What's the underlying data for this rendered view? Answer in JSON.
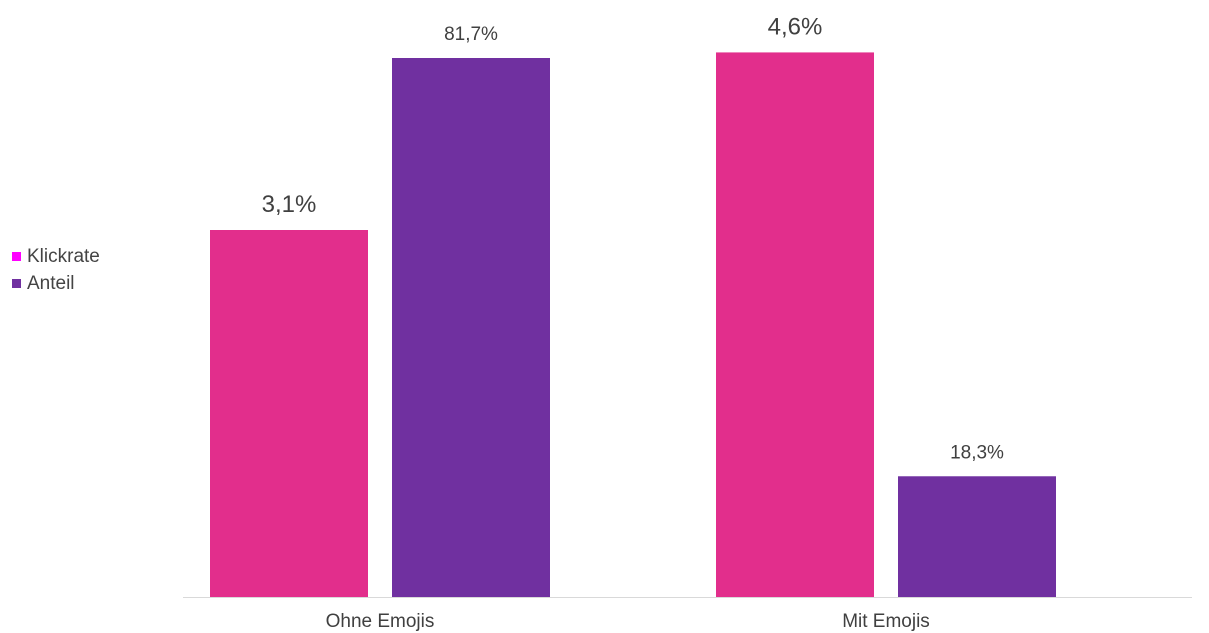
{
  "colors": {
    "Klickrate": "#e22e8c",
    "Anteil": "#7030a0",
    "legend_Klickrate": "#ff00ff",
    "legend_Anteil": "#7030a0",
    "axis": "#d9d9d9",
    "text": "#404040"
  },
  "legend": {
    "items": [
      {
        "label": "Klickrate"
      },
      {
        "label": "Anteil"
      }
    ]
  },
  "chart_data": {
    "type": "bar",
    "categories": [
      "Ohne Emojis",
      "Mit Emojis"
    ],
    "series": [
      {
        "name": "Klickrate",
        "values": [
          3.1,
          4.6
        ],
        "labels": [
          "3,1%",
          "4,6%"
        ]
      },
      {
        "name": "Anteil",
        "values": [
          81.7,
          18.3
        ],
        "labels": [
          "81,7%",
          "18,3%"
        ]
      }
    ],
    "title": "",
    "xlabel": "",
    "ylabel": "",
    "legend_position": "left",
    "grid": false,
    "notes": "Each series is drawn on its own implicit scale (Klickrate vs Anteil)."
  }
}
